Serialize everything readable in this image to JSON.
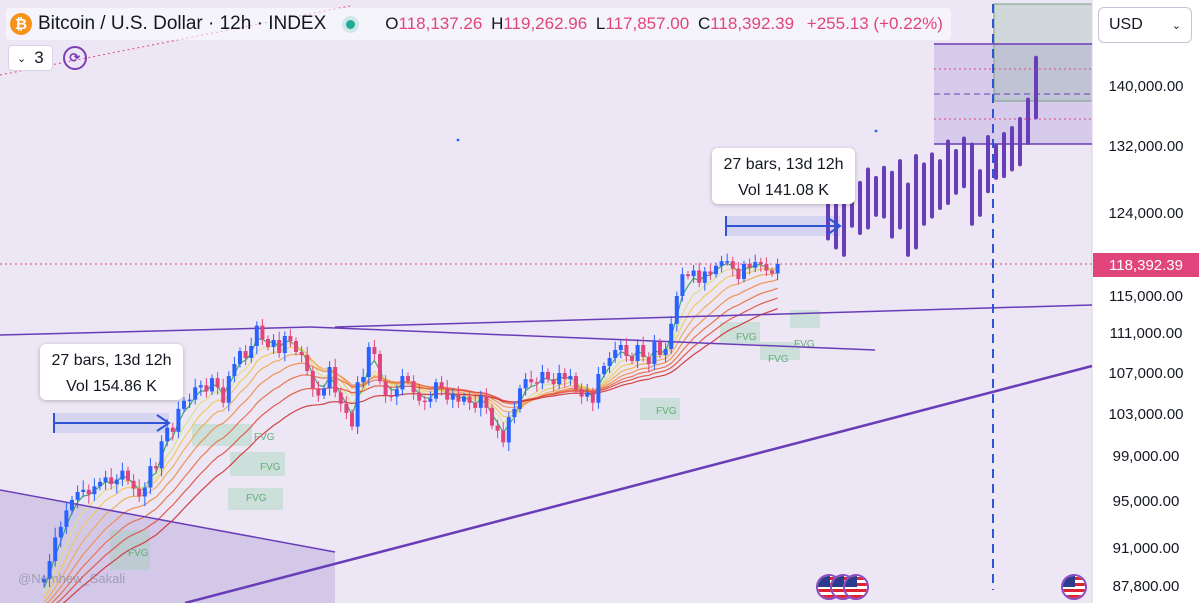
{
  "header": {
    "symbol_title": "Bitcoin / U.S. Dollar · 12h · INDEX",
    "logo_glyph": "₿",
    "open_label": "O",
    "open": "118,137.26",
    "high_label": "H",
    "high": "119,262.96",
    "low_label": "L",
    "low": "117,857.00",
    "close_label": "C",
    "close": "118,392.39",
    "change": "+255.13 (+0.22%)"
  },
  "indicator": {
    "count": "3",
    "chevron": "⌄",
    "sync_glyph": "⟳"
  },
  "currency": {
    "value": "USD",
    "chevron": "⌄"
  },
  "tooltips": [
    {
      "line1": "27 bars, 13d 12h",
      "line2": "Vol 154.86 K"
    },
    {
      "line1": "27 bars, 13d 12h",
      "line2": "Vol 141.08 K"
    }
  ],
  "current_price": "118,392.39",
  "watermark": "@Nemhew_Sakali",
  "fvg_label": "FVG",
  "colors": {
    "bull": "#2962ff",
    "bear": "#e0457b",
    "drawing": "#6a3db8",
    "projection": "#6a3db8",
    "background": "#ece6f5"
  },
  "chart_data": {
    "type": "candlestick",
    "title": "Bitcoin / U.S. Dollar · 12h · INDEX",
    "interval": "12h",
    "price_axis": {
      "position": "right",
      "ticks": [
        "140,000.00",
        "132,000.00",
        "124,000.00",
        "115,000.00",
        "111,000.00",
        "107,000.00",
        "103,000.00",
        "99,000.00",
        "95,000.00",
        "91,000.00",
        "87,800.00"
      ],
      "tick_values": [
        140000,
        132000,
        124000,
        115000,
        111000,
        107000,
        103000,
        99000,
        95000,
        91000,
        87800
      ],
      "range": [
        87500,
        147000
      ],
      "current_price": 118392.39
    },
    "closes": [
      88400,
      89900,
      91900,
      92800,
      94200,
      95100,
      95800,
      96000,
      95600,
      96300,
      96700,
      97100,
      96500,
      96900,
      97700,
      96800,
      96100,
      95400,
      96200,
      98100,
      97900,
      100400,
      101700,
      101300,
      103500,
      104300,
      104400,
      105600,
      105800,
      105200,
      106500,
      105600,
      104100,
      106700,
      107900,
      109200,
      108500,
      109700,
      111800,
      110400,
      109600,
      110300,
      109000,
      110700,
      110200,
      109100,
      108800,
      107200,
      105500,
      104800,
      105500,
      107600,
      105100,
      104000,
      103100,
      101800,
      106100,
      106600,
      109600,
      108900,
      106200,
      104800,
      104700,
      105400,
      106700,
      106200,
      105100,
      104300,
      104200,
      104500,
      106100,
      105500,
      104400,
      105000,
      104200,
      104700,
      104100,
      103600,
      104800,
      103600,
      101900,
      101400,
      100300,
      102700,
      103500,
      105500,
      106400,
      106100,
      106000,
      107100,
      106400,
      105900,
      107000,
      106400,
      106700,
      105400,
      104700,
      105100,
      104100,
      106900,
      107700,
      108500,
      109300,
      109800,
      108700,
      108200,
      109800,
      108600,
      107900,
      110100,
      108800,
      109400,
      112000,
      115000,
      117300,
      117100,
      117700,
      116400,
      117600,
      117300,
      118200,
      118700,
      118700,
      117900,
      116800,
      118400,
      118000,
      118600,
      118400,
      117700,
      117400,
      118392
    ],
    "ema_ribbon_count": 8,
    "projection_bars": [
      [
        123800,
        125800,
        121200,
        126800
      ],
      [
        125800,
        122200,
        120200,
        127800
      ],
      [
        122200,
        124800,
        119400,
        126400
      ],
      [
        124800,
        126200,
        122600,
        128600
      ],
      [
        126200,
        123800,
        121800,
        127600
      ],
      [
        123800,
        126600,
        122400,
        129200
      ],
      [
        126600,
        125200,
        123800,
        128200
      ],
      [
        125200,
        127600,
        123600,
        129400
      ],
      [
        127600,
        123200,
        121400,
        128800
      ],
      [
        123200,
        126000,
        122400,
        130200
      ],
      [
        126000,
        121800,
        119400,
        127400
      ],
      [
        121800,
        127400,
        120200,
        130800
      ],
      [
        127400,
        125400,
        122800,
        129800
      ],
      [
        125400,
        128600,
        123600,
        131000
      ],
      [
        128600,
        126200,
        124600,
        130200
      ],
      [
        126200,
        129600,
        125200,
        132600
      ],
      [
        129600,
        128200,
        126400,
        131400
      ],
      [
        128200,
        131000,
        127200,
        133000
      ],
      [
        131000,
        124800,
        122800,
        132200
      ],
      [
        124800,
        127200,
        123800,
        129000
      ],
      [
        127200,
        130800,
        126600,
        133200
      ],
      [
        130800,
        129800,
        128200,
        132000
      ],
      [
        129800,
        131600,
        128400,
        133600
      ],
      [
        131600,
        130200,
        129200,
        134400
      ],
      [
        130200,
        133400,
        129800,
        135600
      ],
      [
        133400,
        136600,
        132400,
        138200
      ],
      [
        136600,
        140200,
        135800,
        143800
      ]
    ],
    "measure_tools": [
      {
        "bars": 27,
        "span": "13d 12h",
        "volume": "154.86 K"
      },
      {
        "bars": 27,
        "span": "13d 12h",
        "volume": "141.08 K"
      }
    ],
    "annotations": [
      "FVG",
      "FVG",
      "FVG",
      "FVG",
      "FVG",
      "FVG",
      "FVG",
      "FVG"
    ],
    "grid": false,
    "legend": "top-left"
  }
}
